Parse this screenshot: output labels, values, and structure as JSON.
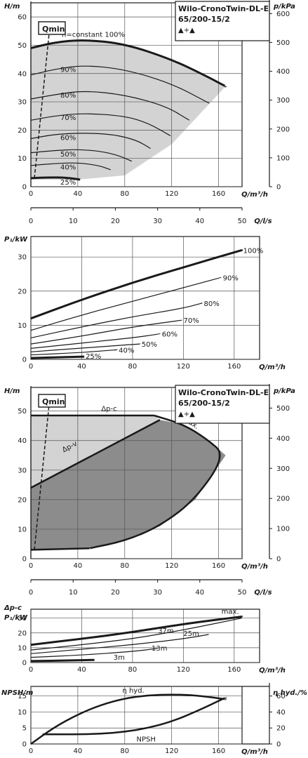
{
  "title": {
    "line1": "Wilo-CronoTwin-DL-E",
    "line2": "65/200-15/2",
    "symbol": "▲+▲"
  },
  "chart_data": [
    {
      "id": "head",
      "type": "line",
      "ylabel_left": "H/m",
      "ylabel_right": "p/kPa",
      "xlabel": "Q/m³/h",
      "xlabel2": "Q/l/s",
      "xlim": [
        0,
        180
      ],
      "ylim": [
        0,
        65
      ],
      "xticks": [
        0,
        40,
        80,
        120,
        160
      ],
      "yticks": [
        0,
        10,
        20,
        30,
        40,
        50,
        60
      ],
      "yticks_right": [
        0,
        100,
        200,
        300,
        400,
        500,
        600
      ],
      "x2ticks": [
        0,
        10,
        20,
        30,
        40,
        50
      ],
      "qmin_label": "Qmin",
      "qmin_line": [
        [
          3,
          3
        ],
        [
          16,
          56
        ]
      ],
      "series": [
        {
          "name": "n=constant 100%",
          "x": [
            0,
            20,
            45,
            80,
            120,
            150,
            166
          ],
          "y": [
            49,
            51,
            52,
            50.5,
            45,
            39,
            35.5
          ]
        },
        {
          "name": "90%",
          "x": [
            0,
            20,
            45,
            80,
            120,
            152
          ],
          "y": [
            39.5,
            41.5,
            43,
            41.5,
            36.5,
            29.5
          ]
        },
        {
          "name": "80%",
          "x": [
            0,
            20,
            45,
            80,
            115,
            135
          ],
          "y": [
            31,
            32.5,
            34,
            32.5,
            28.5,
            23.5
          ]
        },
        {
          "name": "70%",
          "x": [
            0,
            20,
            45,
            80,
            100,
            119
          ],
          "y": [
            23.5,
            25,
            26,
            25,
            22.5,
            18
          ]
        },
        {
          "name": "60%",
          "x": [
            0,
            20,
            45,
            70,
            90,
            102
          ],
          "y": [
            17,
            18.5,
            19,
            18.5,
            16.5,
            13.5
          ]
        },
        {
          "name": "50%",
          "x": [
            0,
            20,
            40,
            60,
            75,
            86
          ],
          "y": [
            12,
            12.8,
            13.2,
            12.5,
            11,
            9
          ]
        },
        {
          "name": "40%",
          "x": [
            0,
            20,
            40,
            58,
            68
          ],
          "y": [
            7.5,
            8.2,
            8.5,
            7.5,
            6
          ]
        },
        {
          "name": "25%",
          "x": [
            0,
            15,
            30,
            42
          ],
          "y": [
            3,
            3.3,
            3.2,
            2.5
          ]
        }
      ]
    },
    {
      "id": "power",
      "type": "line",
      "ylabel": "P₁/kW",
      "xlabel": "Q/m³/h",
      "xlim": [
        0,
        180
      ],
      "ylim": [
        0,
        36
      ],
      "xticks": [
        0,
        40,
        80,
        120,
        160
      ],
      "yticks": [
        0,
        10,
        20,
        30
      ],
      "series": [
        {
          "name": "100%",
          "x": [
            0,
            40,
            80,
            120,
            166
          ],
          "y": [
            12,
            17.5,
            22.5,
            27,
            32
          ]
        },
        {
          "name": "90%",
          "x": [
            0,
            40,
            80,
            120,
            150
          ],
          "y": [
            8.5,
            13,
            17,
            21,
            24
          ]
        },
        {
          "name": "80%",
          "x": [
            0,
            40,
            80,
            120,
            135
          ],
          "y": [
            6.3,
            9.5,
            12.5,
            15,
            16.5
          ]
        },
        {
          "name": "70%",
          "x": [
            0,
            40,
            80,
            119
          ],
          "y": [
            4.5,
            6.8,
            9.5,
            11.5
          ]
        },
        {
          "name": "60%",
          "x": [
            0,
            40,
            80,
            102
          ],
          "y": [
            3.2,
            4.8,
            6.3,
            7.5
          ]
        },
        {
          "name": "50%",
          "x": [
            0,
            40,
            86
          ],
          "y": [
            2.2,
            3.3,
            4.5
          ]
        },
        {
          "name": "40%",
          "x": [
            0,
            40,
            68
          ],
          "y": [
            1.3,
            2,
            2.8
          ]
        },
        {
          "name": "25%",
          "x": [
            0,
            20,
            42
          ],
          "y": [
            0.4,
            0.6,
            0.8
          ]
        }
      ]
    },
    {
      "id": "regulation",
      "type": "area",
      "ylabel_left": "H/m",
      "ylabel_right": "p/kPa",
      "xlabel": "Q/m³/h",
      "xlabel2": "Q/l/s",
      "xlim": [
        0,
        180
      ],
      "ylim": [
        0,
        58
      ],
      "xticks": [
        0,
        40,
        80,
        120,
        160
      ],
      "yticks": [
        0,
        10,
        20,
        30,
        40,
        50
      ],
      "yticks_right": [
        0,
        100,
        200,
        300,
        400,
        500
      ],
      "x2ticks": [
        0,
        10,
        20,
        30,
        40,
        50
      ],
      "qmin_label": "Qmin",
      "qmin_line": [
        [
          3,
          3
        ],
        [
          16,
          54
        ]
      ],
      "labels": {
        "dpc": "Δp-c",
        "dpv": "Δp-v",
        "max": "max."
      },
      "dpc_line": {
        "x": [
          0,
          105
        ],
        "y": [
          48.5,
          48.5
        ]
      },
      "dpv_line": {
        "x": [
          0,
          110
        ],
        "y": [
          24,
          47
        ]
      },
      "max_curve": {
        "x": [
          105,
          130,
          150,
          166,
          140,
          110,
          80,
          50
        ],
        "y": [
          48.5,
          45.5,
          40.5,
          35,
          20,
          11,
          6,
          3.5
        ]
      },
      "min_line": {
        "x": [
          0,
          50
        ],
        "y": [
          3,
          3.5
        ]
      }
    },
    {
      "id": "regulation-power",
      "type": "line",
      "ylabel": "Δp-c P₁/kW",
      "xlabel": "Q/m³/h",
      "xlim": [
        0,
        180
      ],
      "ylim": [
        0,
        36
      ],
      "xticks": [
        0,
        40,
        80,
        120,
        160
      ],
      "yticks": [
        0,
        10,
        20,
        30
      ],
      "series": [
        {
          "name": "max.",
          "x": [
            0,
            40,
            80,
            120,
            166
          ],
          "y": [
            12,
            16,
            20.5,
            26,
            31
          ]
        },
        {
          "name": "37m",
          "x": [
            0,
            40,
            80,
            120,
            166
          ],
          "y": [
            8.5,
            12,
            16,
            22,
            30
          ]
        },
        {
          "name": "25m",
          "x": [
            0,
            40,
            80,
            120,
            140
          ],
          "y": [
            6,
            9,
            12,
            16,
            19
          ]
        },
        {
          "name": "13m",
          "x": [
            0,
            40,
            80,
            100
          ],
          "y": [
            3.5,
            5,
            7.5,
            9.5
          ]
        },
        {
          "name": "3m",
          "x": [
            0,
            30,
            50
          ],
          "y": [
            1,
            1.4,
            1.8
          ]
        }
      ]
    },
    {
      "id": "npsh",
      "type": "line",
      "ylabel_left": "NPSH/m",
      "ylabel_right": "η hyd./%",
      "xlabel": "Q/m³/h",
      "xlim": [
        0,
        180
      ],
      "ylim": [
        0,
        18
      ],
      "xticks": [
        0,
        40,
        80,
        120,
        160
      ],
      "yticks": [
        0,
        5,
        10,
        15
      ],
      "yticks_right": [
        0,
        20,
        40,
        60
      ],
      "series": [
        {
          "name": "η hyd.",
          "x": [
            0,
            20,
            40,
            60,
            80,
            100,
            120,
            140,
            166
          ],
          "y_pct": [
            0,
            21,
            37,
            49,
            57,
            61,
            62,
            61,
            56
          ]
        },
        {
          "name": "NPSH",
          "x": [
            10,
            40,
            60,
            80,
            100,
            120,
            140,
            166
          ],
          "y": [
            3,
            3,
            3.2,
            3.8,
            5,
            7,
            10,
            14.5
          ]
        }
      ]
    }
  ]
}
